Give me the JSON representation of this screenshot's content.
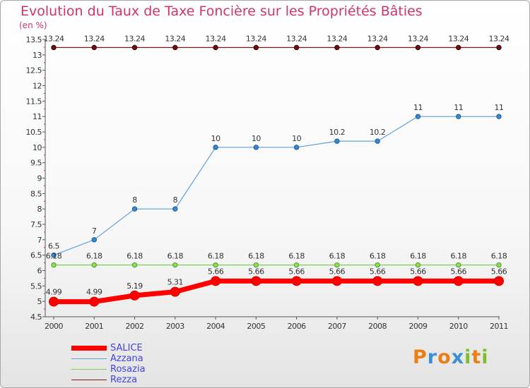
{
  "title": "Evolution du Taux de Taxe Foncière sur les Propriétés Bâties",
  "unit_label": "(en %)",
  "logo": {
    "letters": [
      "P",
      "r",
      "o",
      "x",
      "i",
      "t",
      "i"
    ],
    "colors": [
      "#ea7f18",
      "#3a8fd6",
      "#ea7f18",
      "#3a8fd6",
      "#7bbf2a",
      "#ea7f18",
      "#7bbf2a"
    ]
  },
  "chart_data": {
    "type": "line",
    "title": "Evolution du Taux de Taxe Foncière sur les Propriétés Bâties",
    "ylabel": "(en %)",
    "xlabel": "",
    "x": [
      "2000",
      "2001",
      "2002",
      "2003",
      "2004",
      "2005",
      "2006",
      "2007",
      "2008",
      "2009",
      "2010",
      "2011"
    ],
    "ylim": [
      4.5,
      13.5
    ],
    "yticks": [
      "4.5",
      "5",
      "5.5",
      "6",
      "6.5",
      "7",
      "7.5",
      "8",
      "8.5",
      "9",
      "9.5",
      "10",
      "10.5",
      "11",
      "11.5",
      "12",
      "12.5",
      "13",
      "13.5"
    ],
    "grid": false,
    "legend_position": "bottom-left",
    "series": [
      {
        "name": "SALICE",
        "color": "#ff0000",
        "values": [
          4.99,
          4.99,
          5.19,
          5.31,
          5.66,
          5.66,
          5.66,
          5.66,
          5.66,
          5.66,
          5.66,
          5.66
        ],
        "labels": [
          "4.99",
          "4.99",
          "5.19",
          "5.31",
          "5.66",
          "5.66",
          "5.66",
          "5.66",
          "5.66",
          "5.66",
          "5.66",
          "5.66"
        ]
      },
      {
        "name": "Azzana",
        "color": "#5f9fdc",
        "values": [
          6.5,
          7,
          8,
          8,
          10,
          10,
          10,
          10.2,
          10.2,
          11,
          11,
          11
        ],
        "labels": [
          "6.5",
          "7",
          "8",
          "8",
          "10",
          "10",
          "10",
          "10.2",
          "10.2",
          "11",
          "11",
          "11"
        ]
      },
      {
        "name": "Rosazia",
        "color": "#7fcf55",
        "values": [
          6.18,
          6.18,
          6.18,
          6.18,
          6.18,
          6.18,
          6.18,
          6.18,
          6.18,
          6.18,
          6.18,
          6.18
        ],
        "labels": [
          "6.18",
          "6.18",
          "6.18",
          "6.18",
          "6.18",
          "6.18",
          "6.18",
          "6.18",
          "6.18",
          "6.18",
          "6.18",
          "6.18"
        ]
      },
      {
        "name": "Rezza",
        "color": "#7a1a1a",
        "values": [
          13.24,
          13.24,
          13.24,
          13.24,
          13.24,
          13.24,
          13.24,
          13.24,
          13.24,
          13.24,
          13.24,
          13.24
        ],
        "labels": [
          "13.24",
          "13.24",
          "13.24",
          "13.24",
          "13.24",
          "13.24",
          "13.24",
          "13.24",
          "13.24",
          "13.24",
          "13.24",
          "13.24"
        ]
      }
    ]
  }
}
